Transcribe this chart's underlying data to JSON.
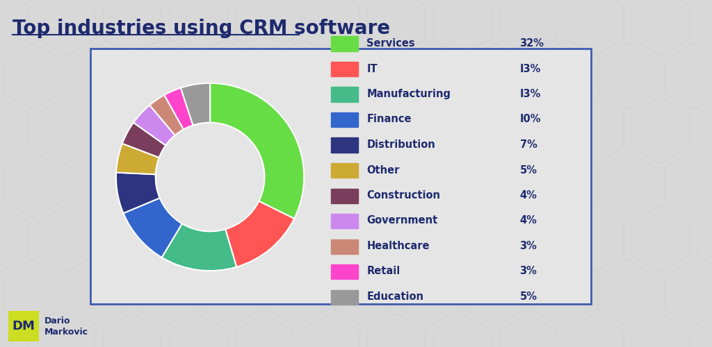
{
  "title": "Top industries using CRM software",
  "title_color": "#1e2a6e",
  "title_fontsize": 20,
  "background_color": "#d8d8d8",
  "categories": [
    "Services",
    "IT",
    "Manufacturing",
    "Finance",
    "Distribution",
    "Other",
    "Construction",
    "Government",
    "Healthcare",
    "Retail",
    "Education"
  ],
  "values": [
    32,
    13,
    13,
    10,
    7,
    5,
    4,
    4,
    3,
    3,
    5
  ],
  "percentages": [
    "32%",
    "I3%",
    "I3%",
    "I0%",
    "7%",
    "5%",
    "4%",
    "4%",
    "3%",
    "3%",
    "5%"
  ],
  "colors": [
    "#66dd44",
    "#ff5555",
    "#44bb88",
    "#3366cc",
    "#2d3480",
    "#ccaa33",
    "#7a3d5c",
    "#cc88ee",
    "#cc8877",
    "#ff44cc",
    "#999999"
  ],
  "legend_label_color": "#1e2a6e",
  "border_color": "#2244aa",
  "donut_width": 0.42,
  "logo_bg": "#ccdd22",
  "logo_text_color": "#1e2a6e"
}
